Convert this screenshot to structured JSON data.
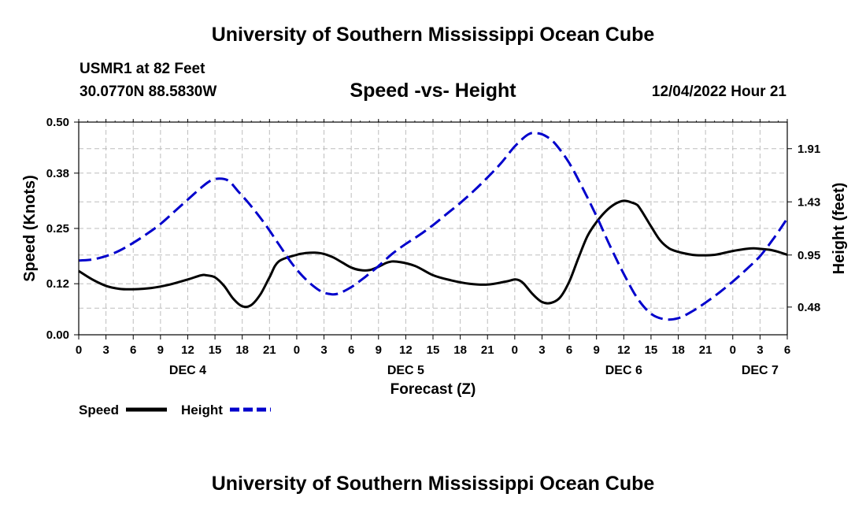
{
  "header": {
    "title": "University of Southern Mississippi Ocean Cube",
    "station": "USMR1 at 82 Feet",
    "coords": "30.0770N  88.5830W",
    "subtitle": "Speed -vs- Height",
    "date": "12/04/2022 Hour 21"
  },
  "footer": {
    "title": "University of Southern Mississippi Ocean Cube"
  },
  "chart_data": {
    "type": "line",
    "title": "Speed -vs- Height",
    "xlabel": "Forecast (Z)",
    "ylabel": "Speed (Knots)",
    "y2label": "Height (feet)",
    "x_unit": "hours since DEC 4 00Z",
    "xlim": [
      0,
      78
    ],
    "ylim": [
      0,
      0.5
    ],
    "y2lim": [
      0.23,
      2.15
    ],
    "yticks": [
      "0.00",
      "0.12",
      "0.25",
      "0.38",
      "0.50"
    ],
    "y2ticks": [
      "0.48",
      "0.95",
      "1.43",
      "1.91"
    ],
    "xtick_labels": [
      "0",
      "3",
      "6",
      "9",
      "12",
      "15",
      "18",
      "21",
      "0",
      "3",
      "6",
      "9",
      "12",
      "15",
      "18",
      "21",
      "0",
      "3",
      "6",
      "9",
      "12",
      "15",
      "18",
      "21",
      "0",
      "3",
      "6"
    ],
    "day_labels": [
      {
        "label": "DEC 4",
        "hour": 12
      },
      {
        "label": "DEC 5",
        "hour": 36
      },
      {
        "label": "DEC 6",
        "hour": 60
      },
      {
        "label": "DEC 7",
        "hour": 75
      }
    ],
    "grid": true,
    "legend": "bottom-left",
    "series": [
      {
        "name": "Speed",
        "axis": "left",
        "color": "#000000",
        "style": "solid",
        "x": [
          0,
          1.5,
          3,
          4.5,
          6,
          8,
          10,
          12,
          13.5,
          14,
          15,
          16,
          17,
          18,
          19,
          20,
          21,
          22,
          24,
          25,
          26,
          27,
          28,
          29,
          30,
          31,
          32,
          33,
          34,
          35,
          37,
          39,
          41,
          43,
          45,
          47,
          48,
          48.5,
          49,
          50,
          51,
          52,
          53,
          54,
          55,
          56,
          57,
          58,
          59,
          60,
          61,
          61.5,
          62,
          63,
          64,
          65,
          66,
          67,
          68,
          70,
          72,
          74,
          75,
          76,
          77,
          78
        ],
        "values": [
          0.15,
          0.13,
          0.115,
          0.108,
          0.107,
          0.11,
          0.118,
          0.13,
          0.14,
          0.14,
          0.135,
          0.115,
          0.085,
          0.067,
          0.07,
          0.095,
          0.135,
          0.172,
          0.188,
          0.192,
          0.193,
          0.19,
          0.182,
          0.17,
          0.158,
          0.152,
          0.152,
          0.16,
          0.17,
          0.172,
          0.162,
          0.14,
          0.128,
          0.12,
          0.118,
          0.125,
          0.13,
          0.128,
          0.12,
          0.095,
          0.077,
          0.075,
          0.088,
          0.125,
          0.18,
          0.232,
          0.265,
          0.29,
          0.307,
          0.315,
          0.31,
          0.305,
          0.29,
          0.255,
          0.222,
          0.203,
          0.195,
          0.19,
          0.187,
          0.188,
          0.197,
          0.203,
          0.202,
          0.2,
          0.195,
          0.188
        ]
      },
      {
        "name": "Height",
        "axis": "right",
        "color": "#0000CC",
        "style": "dashed",
        "x": [
          0,
          1.5,
          3,
          4.5,
          6,
          7.5,
          9,
          10.5,
          12,
          13.5,
          14.5,
          15.5,
          16.5,
          17.5,
          19,
          20.5,
          22,
          23.5,
          25,
          26.5,
          27.5,
          28.5,
          30,
          31.5,
          33,
          34.5,
          36,
          37.5,
          39,
          40.5,
          42,
          43.5,
          45,
          46.5,
          48,
          49.5,
          50.5,
          51.5,
          52.5,
          54,
          55.5,
          57,
          58.5,
          60,
          61.5,
          63,
          64.5,
          66,
          67.5,
          69,
          70.5,
          72,
          73.5,
          75,
          76.5,
          78
        ],
        "values": [
          0.9,
          0.91,
          0.94,
          0.99,
          1.06,
          1.14,
          1.23,
          1.34,
          1.45,
          1.56,
          1.62,
          1.64,
          1.62,
          1.53,
          1.39,
          1.23,
          1.05,
          0.87,
          0.73,
          0.63,
          0.6,
          0.6,
          0.66,
          0.75,
          0.85,
          0.96,
          1.05,
          1.13,
          1.22,
          1.32,
          1.42,
          1.53,
          1.65,
          1.78,
          1.93,
          2.04,
          2.05,
          2.02,
          1.95,
          1.78,
          1.55,
          1.3,
          1.03,
          0.78,
          0.56,
          0.42,
          0.37,
          0.38,
          0.44,
          0.52,
          0.61,
          0.71,
          0.82,
          0.94,
          1.1,
          1.28
        ]
      }
    ]
  }
}
